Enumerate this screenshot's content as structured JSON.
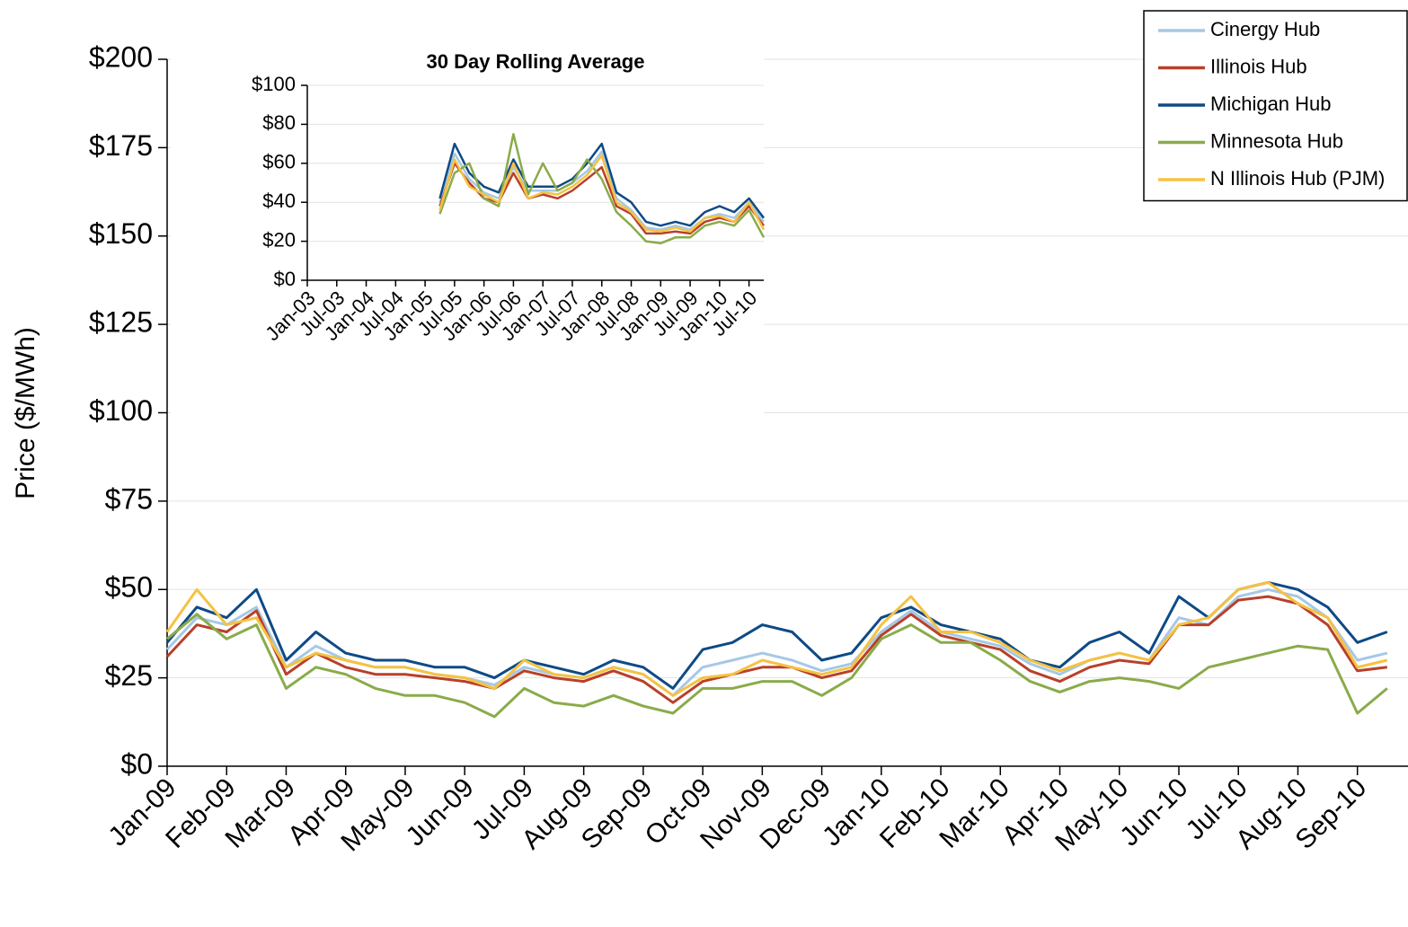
{
  "chart_data": [
    {
      "type": "line",
      "y_label": "Price ($/MWh)",
      "grid": true,
      "legend": "top-right",
      "x": [
        0,
        0.5,
        1,
        1.5,
        2,
        2.5,
        3,
        3.5,
        4,
        4.5,
        5,
        5.5,
        6,
        6.5,
        7,
        7.5,
        8,
        8.5,
        9,
        9.5,
        10,
        10.5,
        11,
        11.5,
        12,
        12.5,
        13,
        13.5,
        14,
        14.5,
        15,
        15.5,
        16,
        16.5,
        17,
        17.5,
        18,
        18.5,
        19,
        19.5,
        20,
        20.5
      ],
      "xlim": [
        0,
        20.85
      ],
      "xticks": [
        {
          "value": 0,
          "label": "Jan-09"
        },
        {
          "value": 1,
          "label": "Feb-09"
        },
        {
          "value": 2,
          "label": "Mar-09"
        },
        {
          "value": 3,
          "label": "Apr-09"
        },
        {
          "value": 4,
          "label": "May-09"
        },
        {
          "value": 5,
          "label": "Jun-09"
        },
        {
          "value": 6,
          "label": "Jul-09"
        },
        {
          "value": 7,
          "label": "Aug-09"
        },
        {
          "value": 8,
          "label": "Sep-09"
        },
        {
          "value": 9,
          "label": "Oct-09"
        },
        {
          "value": 10,
          "label": "Nov-09"
        },
        {
          "value": 11,
          "label": "Dec-09"
        },
        {
          "value": 12,
          "label": "Jan-10"
        },
        {
          "value": 13,
          "label": "Feb-10"
        },
        {
          "value": 14,
          "label": "Mar-10"
        },
        {
          "value": 15,
          "label": "Apr-10"
        },
        {
          "value": 16,
          "label": "May-10"
        },
        {
          "value": 17,
          "label": "Jun-10"
        },
        {
          "value": 18,
          "label": "Jul-10"
        },
        {
          "value": 19,
          "label": "Aug-10"
        },
        {
          "value": 20,
          "label": "Sep-10"
        }
      ],
      "ylim": [
        0,
        200
      ],
      "yticks": [
        {
          "value": 0,
          "label": "$0"
        },
        {
          "value": 25,
          "label": "$25"
        },
        {
          "value": 50,
          "label": "$50"
        },
        {
          "value": 75,
          "label": "$75"
        },
        {
          "value": 100,
          "label": "$100"
        },
        {
          "value": 125,
          "label": "$125"
        },
        {
          "value": 150,
          "label": "$150"
        },
        {
          "value": 175,
          "label": "$175"
        },
        {
          "value": 200,
          "label": "$200"
        }
      ],
      "series": [
        {
          "name": "Cinergy Hub",
          "color": "#a6c8e6",
          "values": [
            33,
            42,
            40,
            45,
            28,
            34,
            30,
            28,
            28,
            26,
            25,
            23,
            28,
            26,
            25,
            28,
            26,
            20,
            28,
            30,
            32,
            30,
            27,
            29,
            38,
            44,
            38,
            36,
            34,
            29,
            26,
            30,
            32,
            30,
            42,
            40,
            48,
            50,
            48,
            42,
            30,
            32
          ]
        },
        {
          "name": "Illinois Hub",
          "color": "#b8402a",
          "values": [
            31,
            40,
            38,
            44,
            26,
            32,
            28,
            26,
            26,
            25,
            24,
            22,
            27,
            25,
            24,
            27,
            24,
            18,
            24,
            26,
            28,
            28,
            25,
            27,
            37,
            43,
            37,
            35,
            33,
            27,
            24,
            28,
            30,
            29,
            40,
            40,
            47,
            48,
            46,
            40,
            27,
            28
          ]
        },
        {
          "name": "Michigan Hub",
          "color": "#0e4a86",
          "values": [
            35,
            45,
            42,
            50,
            30,
            38,
            32,
            30,
            30,
            28,
            28,
            25,
            30,
            28,
            26,
            30,
            28,
            22,
            33,
            35,
            40,
            38,
            30,
            32,
            42,
            45,
            40,
            38,
            36,
            30,
            28,
            35,
            38,
            32,
            48,
            42,
            50,
            52,
            50,
            45,
            35,
            38
          ]
        },
        {
          "name": "Minnesota Hub",
          "color": "#8aab4a",
          "values": [
            36,
            43,
            36,
            40,
            22,
            28,
            26,
            22,
            20,
            20,
            18,
            14,
            22,
            18,
            17,
            20,
            17,
            15,
            22,
            22,
            24,
            24,
            20,
            25,
            36,
            40,
            35,
            35,
            30,
            24,
            21,
            24,
            25,
            24,
            22,
            28,
            30,
            32,
            34,
            33,
            15,
            22
          ]
        },
        {
          "name": "N Illinois Hub (PJM)",
          "color": "#f5c242",
          "values": [
            38,
            50,
            40,
            42,
            28,
            32,
            30,
            28,
            28,
            26,
            25,
            22,
            30,
            26,
            25,
            28,
            26,
            20,
            25,
            26,
            30,
            28,
            26,
            28,
            40,
            48,
            38,
            38,
            35,
            30,
            27,
            30,
            32,
            30,
            40,
            42,
            50,
            52,
            46,
            42,
            28,
            30
          ]
        }
      ]
    },
    {
      "type": "line",
      "title": "30 Day Rolling Average",
      "grid": true,
      "x": [
        27,
        30,
        33,
        36,
        39,
        42,
        45,
        48,
        51,
        54,
        57,
        60,
        63,
        66,
        69,
        72,
        75,
        78,
        81,
        84,
        87,
        90,
        93
      ],
      "xlim": [
        0,
        93
      ],
      "xticks": [
        {
          "value": 0,
          "label": "Jan-03"
        },
        {
          "value": 6,
          "label": "Jul-03"
        },
        {
          "value": 12,
          "label": "Jan-04"
        },
        {
          "value": 18,
          "label": "Jul-04"
        },
        {
          "value": 24,
          "label": "Jan-05"
        },
        {
          "value": 30,
          "label": "Jul-05"
        },
        {
          "value": 36,
          "label": "Jan-06"
        },
        {
          "value": 42,
          "label": "Jul-06"
        },
        {
          "value": 48,
          "label": "Jan-07"
        },
        {
          "value": 54,
          "label": "Jul-07"
        },
        {
          "value": 60,
          "label": "Jan-08"
        },
        {
          "value": 66,
          "label": "Jul-08"
        },
        {
          "value": 72,
          "label": "Jan-09"
        },
        {
          "value": 78,
          "label": "Jul-09"
        },
        {
          "value": 84,
          "label": "Jan-10"
        },
        {
          "value": 90,
          "label": "Jul-10"
        }
      ],
      "ylim": [
        0,
        100
      ],
      "yticks": [
        {
          "value": 0,
          "label": "$0"
        },
        {
          "value": 20,
          "label": "$20"
        },
        {
          "value": 40,
          "label": "$40"
        },
        {
          "value": 60,
          "label": "$60"
        },
        {
          "value": 80,
          "label": "$80"
        },
        {
          "value": 100,
          "label": "$100"
        }
      ],
      "series": [
        {
          "color": "#a6c8e6",
          "values": [
            40,
            65,
            52,
            45,
            42,
            58,
            46,
            46,
            46,
            50,
            56,
            66,
            42,
            36,
            27,
            26,
            28,
            26,
            32,
            34,
            32,
            40,
            30
          ]
        },
        {
          "color": "#b8402a",
          "values": [
            38,
            60,
            50,
            42,
            40,
            55,
            42,
            44,
            42,
            46,
            52,
            58,
            38,
            34,
            24,
            24,
            25,
            24,
            30,
            32,
            30,
            38,
            28
          ]
        },
        {
          "color": "#0e4a86",
          "values": [
            42,
            70,
            55,
            48,
            45,
            62,
            48,
            48,
            48,
            52,
            60,
            70,
            45,
            40,
            30,
            28,
            30,
            28,
            35,
            38,
            35,
            42,
            32
          ]
        },
        {
          "color": "#8aab4a",
          "values": [
            34,
            55,
            60,
            42,
            38,
            75,
            44,
            60,
            46,
            50,
            62,
            52,
            35,
            28,
            20,
            19,
            22,
            22,
            28,
            30,
            28,
            36,
            22
          ]
        },
        {
          "color": "#f5c242",
          "values": [
            36,
            62,
            48,
            44,
            40,
            60,
            42,
            45,
            44,
            48,
            54,
            64,
            40,
            35,
            26,
            25,
            27,
            25,
            32,
            33,
            30,
            40,
            26
          ]
        }
      ]
    }
  ]
}
